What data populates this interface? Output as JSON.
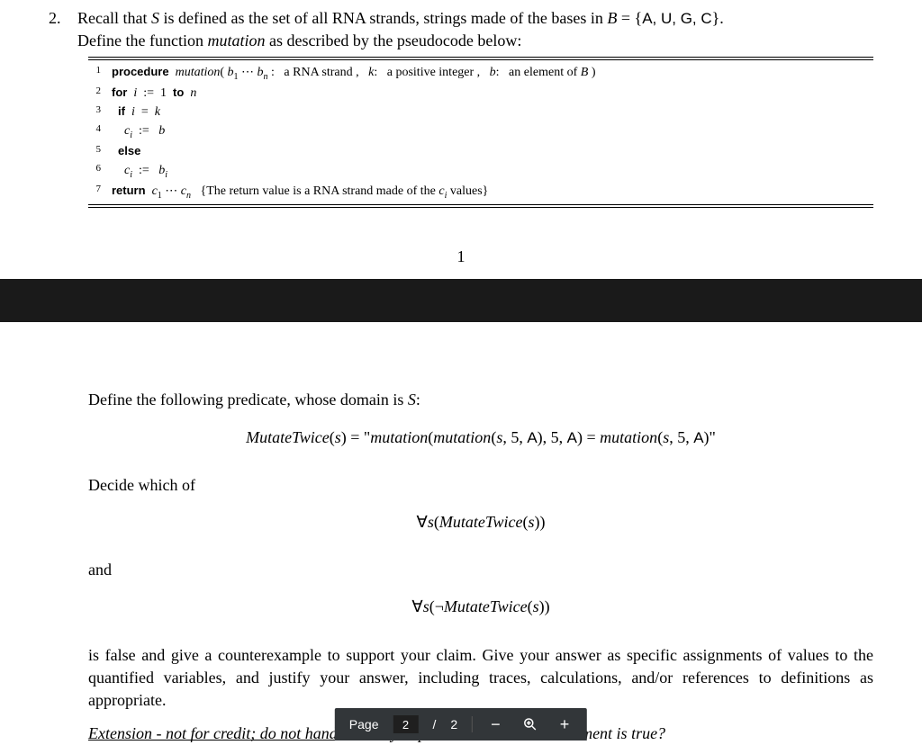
{
  "question": {
    "number": "2.",
    "line1_a": "Recall that ",
    "line1_S": "S",
    "line1_b": " is defined as the set of all RNA strands, strings made of the bases in ",
    "line1_B": "B",
    "line1_eq": " = {",
    "line1_bases": "A, U, G, C",
    "line1_close": "}.",
    "line2_a": "Define the function ",
    "line2_fn": "mutation",
    "line2_b": " as described by the pseudocode below:"
  },
  "code": {
    "lines": [
      {
        "n": "1",
        "indent": 0,
        "parts": [
          {
            "t": "procedure",
            "cls": "kw"
          },
          {
            "t": "  "
          },
          {
            "t": "mutation",
            "cls": "mi"
          },
          {
            "t": "( "
          },
          {
            "t": "b",
            "cls": "mi"
          },
          {
            "t": "1",
            "cls": "sub"
          },
          {
            "t": " ⋯ "
          },
          {
            "t": "b",
            "cls": "mi"
          },
          {
            "t": "n",
            "cls": "sub mi"
          },
          {
            "t": " :   a RNA strand ,   "
          },
          {
            "t": "k",
            "cls": "mi"
          },
          {
            "t": ":   a positive integer ,   "
          },
          {
            "t": "b",
            "cls": "mi"
          },
          {
            "t": ":   an element of "
          },
          {
            "t": "B",
            "cls": "mi"
          },
          {
            "t": " )"
          }
        ]
      },
      {
        "n": "2",
        "indent": 0,
        "parts": [
          {
            "t": "for",
            "cls": "kw"
          },
          {
            "t": "  "
          },
          {
            "t": "i",
            "cls": "mi"
          },
          {
            "t": "  :=  1  "
          },
          {
            "t": "to",
            "cls": "kw"
          },
          {
            "t": "  "
          },
          {
            "t": "n",
            "cls": "mi"
          }
        ]
      },
      {
        "n": "3",
        "indent": 1,
        "parts": [
          {
            "t": "if",
            "cls": "kw"
          },
          {
            "t": "  "
          },
          {
            "t": "i",
            "cls": "mi"
          },
          {
            "t": "  =  "
          },
          {
            "t": "k",
            "cls": "mi"
          }
        ]
      },
      {
        "n": "4",
        "indent": 2,
        "parts": [
          {
            "t": "c",
            "cls": "mi"
          },
          {
            "t": "i",
            "cls": "sub mi"
          },
          {
            "t": "  :=   "
          },
          {
            "t": "b",
            "cls": "mi"
          }
        ]
      },
      {
        "n": "5",
        "indent": 1,
        "parts": [
          {
            "t": "else",
            "cls": "kw"
          }
        ]
      },
      {
        "n": "6",
        "indent": 2,
        "parts": [
          {
            "t": "c",
            "cls": "mi"
          },
          {
            "t": "i",
            "cls": "sub mi"
          },
          {
            "t": "  :=   "
          },
          {
            "t": "b",
            "cls": "mi"
          },
          {
            "t": "i",
            "cls": "sub mi"
          }
        ]
      },
      {
        "n": "7",
        "indent": 0,
        "parts": [
          {
            "t": "return",
            "cls": "kw"
          },
          {
            "t": "  "
          },
          {
            "t": "c",
            "cls": "mi"
          },
          {
            "t": "1",
            "cls": "sub"
          },
          {
            "t": " ⋯ "
          },
          {
            "t": "c",
            "cls": "mi"
          },
          {
            "t": "n",
            "cls": "sub mi"
          },
          {
            "t": "   {The return value is a RNA strand made of the "
          },
          {
            "t": "c",
            "cls": "mi"
          },
          {
            "t": "i",
            "cls": "sub mi"
          },
          {
            "t": " values}"
          }
        ]
      }
    ]
  },
  "page_number_top": "1",
  "lower": {
    "predicate_intro_a": "Define the following predicate, whose domain is ",
    "predicate_intro_S": "S",
    "predicate_intro_b": ":",
    "predicate_eq": "MutateTwice(s) = “mutation(mutation(s, 5, A), 5, A) = mutation(s, 5, A)”",
    "decide": "Decide which of",
    "forall1": "∀s(MutateTwice(s))",
    "and": "and",
    "forall2": "∀s(¬MutateTwice(s))",
    "justify": "is false and give a counterexample to support your claim. Give your answer as specific assignments of values to the quantified variables, and justify your answer, including traces, calculations, and/or references to definitions as appropriate.",
    "extension_a": "Extension - not for credit; do not hand in: can you prove that the",
    "extension_b": " other statement is true?"
  },
  "toolbar": {
    "page_label": "Page",
    "current": "2",
    "sep": "/",
    "total": "2",
    "minus": "−",
    "plus": "+"
  },
  "colors": {
    "bg": "#ffffff",
    "text": "#000000",
    "band": "#1a1a1a",
    "toolbar_bg": "#323639",
    "toolbar_fg": "#ffffff",
    "input_bg": "#1f1f1f"
  }
}
